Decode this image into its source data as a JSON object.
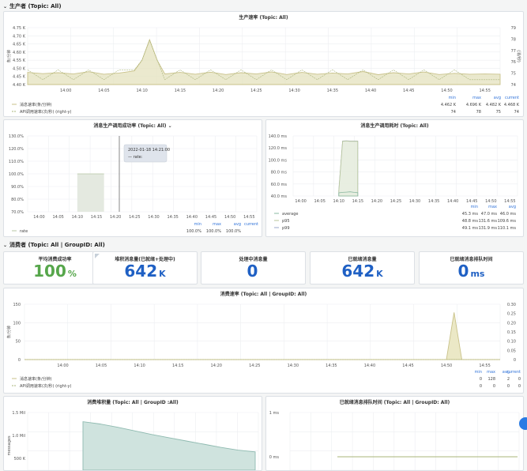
{
  "sections": {
    "producer": "生产者 (Topic: All)",
    "consumer": "消费者 (Topic: All | GroupID: All)"
  },
  "panels": {
    "production_rate": {
      "title": "生产速率 (Topic: All)",
      "yleft_label": "条/分钟",
      "yright_label": "(消/秒)",
      "yleft_ticks": [
        "4.75 K",
        "4.70 K",
        "4.65 K",
        "4.60 K",
        "4.55 K",
        "4.50 K",
        "4.45 K",
        "4.40 K"
      ],
      "yright_ticks": [
        "79",
        "78",
        "77",
        "76",
        "75",
        "74"
      ],
      "x_ticks": [
        "14:00",
        "14:05",
        "14:10",
        "14:15",
        "14:20",
        "14:25",
        "14:30",
        "14:35",
        "14:40",
        "14:45",
        "14:50",
        "14:55"
      ],
      "legend_headers": [
        "min",
        "max",
        "avg",
        "current"
      ],
      "legend": [
        {
          "name": "消息速率(条/分钟)",
          "min": "4.462 K",
          "max": "4.696 K",
          "avg": "4.482 K",
          "current": "4.468 K"
        },
        {
          "name": "API调用速率(次/秒) (right-y)",
          "min": "74",
          "max": "78",
          "avg": "75",
          "current": "74"
        }
      ]
    },
    "success_rate": {
      "title": "消息生产调用成功率 (Topic: All)",
      "y_ticks": [
        "130.0%",
        "120.0%",
        "110.0%",
        "100.0%",
        "90.0%",
        "80.0%",
        "70.0%"
      ],
      "x_ticks": [
        "14:00",
        "14:05",
        "14:10",
        "14:15",
        "14:20",
        "14:25",
        "14:30",
        "14:35",
        "14:40",
        "14:45",
        "14:50",
        "14:55"
      ],
      "tooltip_time": "2022-01-18 14:21:00",
      "tooltip_row": "— rate:",
      "legend_headers": [
        "min",
        "max",
        "avg",
        "current"
      ],
      "legend": [
        {
          "name": "rate",
          "min": "100.0%",
          "max": "100.0%",
          "avg": "100.0%",
          "current": ""
        }
      ]
    },
    "latency": {
      "title": "消息生产调用耗时 (Topic: All)",
      "y_ticks": [
        "140.0 ms",
        "120.0 ms",
        "100.0 ms",
        "80.0 ms",
        "60.0 ms",
        "40.0 ms"
      ],
      "x_ticks": [
        "14:00",
        "14:05",
        "14:10",
        "14:15",
        "14:20",
        "14:25",
        "14:30",
        "14:35",
        "14:40",
        "14:45",
        "14:50",
        "14:55"
      ],
      "legend_headers": [
        "min",
        "max",
        "avg"
      ],
      "legend": [
        {
          "name": "average",
          "min": "45.3 ms",
          "max": "47.0 ms",
          "avg": "46.0 ms"
        },
        {
          "name": "p95",
          "min": "48.8 ms",
          "max": "131.6 ms",
          "avg": "109.6 ms"
        },
        {
          "name": "p99",
          "min": "49.1 ms",
          "max": "131.9 ms",
          "avg": "110.1 ms"
        }
      ]
    },
    "stats": [
      {
        "title": "平均消费成功率",
        "value": "100",
        "unit": "%",
        "color": "green"
      },
      {
        "title": "堆积消息量(已就绪+处理中)",
        "value": "642",
        "unit": "K",
        "color": "blue"
      },
      {
        "title": "处理中消息量",
        "value": "0",
        "unit": "",
        "color": "blue"
      },
      {
        "title": "已就绪消息量",
        "value": "642",
        "unit": "K",
        "color": "blue"
      },
      {
        "title": "已就绪消息排队时间",
        "value": "0",
        "unit": "ms",
        "color": "blue"
      }
    ],
    "consume_rate": {
      "title": "消费速率 (Topic: All | GroupID: All)",
      "yleft_label": "条/分钟",
      "yleft_ticks": [
        "150",
        "100",
        "50",
        "0"
      ],
      "yright_ticks": [
        "0.30",
        "0.25",
        "0.20",
        "0.15",
        "0.10",
        "0.05",
        "0"
      ],
      "x_ticks": [
        "14:00",
        "14:05",
        "14:10",
        "14:15",
        "14:20",
        "14:25",
        "14:30",
        "14:35",
        "14:40",
        "14:45",
        "14:50",
        "14:55"
      ],
      "legend_headers": [
        "min",
        "max",
        "avg",
        "current"
      ],
      "legend": [
        {
          "name": "消息速率(条/分钟)",
          "min": "0",
          "max": "128",
          "avg": "2",
          "current": "0"
        },
        {
          "name": "API调用速率(次/秒) (right-y)",
          "min": "0",
          "max": "0",
          "avg": "0",
          "current": "0"
        }
      ]
    },
    "backlog": {
      "title": "消费堆积量 (Topic: All | GroupID :All)",
      "y_label": "messages",
      "y_ticks": [
        "1.5 Mil",
        "1.0 Mil",
        "500 K"
      ]
    },
    "queue_time": {
      "title": "已就绪消息排队时间 (Topic: All | GroupID: All)",
      "y_ticks": [
        "1 ms",
        "0 ms"
      ]
    }
  },
  "chart_data": [
    {
      "type": "line",
      "title": "生产速率 (Topic: All)",
      "x": [
        "13:55",
        "13:57",
        "13:59",
        "14:01",
        "14:03",
        "14:05",
        "14:07",
        "14:09",
        "14:10",
        "14:11",
        "14:12",
        "14:13",
        "14:15",
        "14:17",
        "14:19",
        "14:21",
        "14:23",
        "14:25",
        "14:27",
        "14:29",
        "14:31",
        "14:33",
        "14:35",
        "14:37",
        "14:39",
        "14:41",
        "14:43",
        "14:45",
        "14:47",
        "14:49",
        "14:51",
        "14:53",
        "14:55",
        "14:57"
      ],
      "series": [
        {
          "name": "消息速率(条/分钟)",
          "values": [
            4480,
            4472,
            4478,
            4470,
            4485,
            4468,
            4476,
            4490,
            4560,
            4696,
            4560,
            4470,
            4480,
            4468,
            4482,
            4466,
            4478,
            4470,
            4484,
            4466,
            4480,
            4468,
            4476,
            4470,
            4486,
            4465,
            4478,
            4470,
            4483,
            4466,
            4474,
            4468,
            4470,
            4468
          ]
        },
        {
          "name": "API调用速率(次/秒) (right-y)",
          "values": [
            75,
            74,
            75,
            74,
            75,
            74,
            75,
            75,
            76,
            78,
            76,
            74,
            75,
            74,
            75,
            74,
            75,
            74,
            75,
            74,
            75,
            74,
            75,
            74,
            75,
            74,
            75,
            74,
            75,
            74,
            75,
            74,
            74,
            74
          ]
        }
      ],
      "ylim": [
        4400,
        4775
      ],
      "y2lim": [
        73.5,
        79.3
      ]
    },
    {
      "type": "area",
      "title": "消息生产调用成功率 (Topic: All)",
      "x": [
        "14:10",
        "14:17"
      ],
      "series": [
        {
          "name": "rate",
          "values": [
            100,
            100
          ]
        }
      ],
      "ylim": [
        70,
        130
      ]
    },
    {
      "type": "line",
      "title": "消息生产调用耗时 (Topic: All)",
      "x": [
        "14:10",
        "14:11",
        "14:12",
        "14:13",
        "14:14",
        "14:15"
      ],
      "series": [
        {
          "name": "average",
          "values": [
            45.3,
            46,
            46.5,
            47,
            46,
            45.5
          ]
        },
        {
          "name": "p95",
          "values": [
            48.8,
            131,
            131.6,
            131,
            131,
            131
          ]
        },
        {
          "name": "p99",
          "values": [
            49.1,
            131.5,
            131.9,
            131.5,
            131.5,
            131.5
          ]
        }
      ],
      "ylim": [
        40,
        140
      ]
    },
    {
      "type": "line",
      "title": "消费速率 (Topic: All | GroupID: All)",
      "x": [
        "13:55",
        "14:05",
        "14:15",
        "14:25",
        "14:35",
        "14:45",
        "14:50",
        "14:51",
        "14:52",
        "14:55",
        "14:57"
      ],
      "series": [
        {
          "name": "消息速率(条/分钟)",
          "values": [
            0,
            0,
            0,
            0,
            0,
            0,
            0,
            128,
            0,
            0,
            0
          ]
        },
        {
          "name": "API调用速率(次/秒) (right-y)",
          "values": [
            0,
            0,
            0,
            0,
            0,
            0,
            0,
            0,
            0,
            0,
            0
          ]
        }
      ],
      "ylim": [
        0,
        150
      ],
      "y2lim": [
        0,
        0.3
      ]
    },
    {
      "type": "area",
      "title": "消费堆积量 (Topic: All | GroupID :All)",
      "series": [
        {
          "name": "",
          "values": [
            1300000,
            1250000,
            1180000,
            1100000,
            1020000,
            950000,
            880000,
            810000,
            740000,
            680000,
            642000
          ]
        }
      ]
    },
    {
      "type": "line",
      "title": "已就绪消息排队时间 (Topic: All | GroupID: All)",
      "series": [
        {
          "name": "",
          "values": [
            0,
            0
          ]
        }
      ],
      "ylim": [
        0,
        1
      ]
    }
  ]
}
